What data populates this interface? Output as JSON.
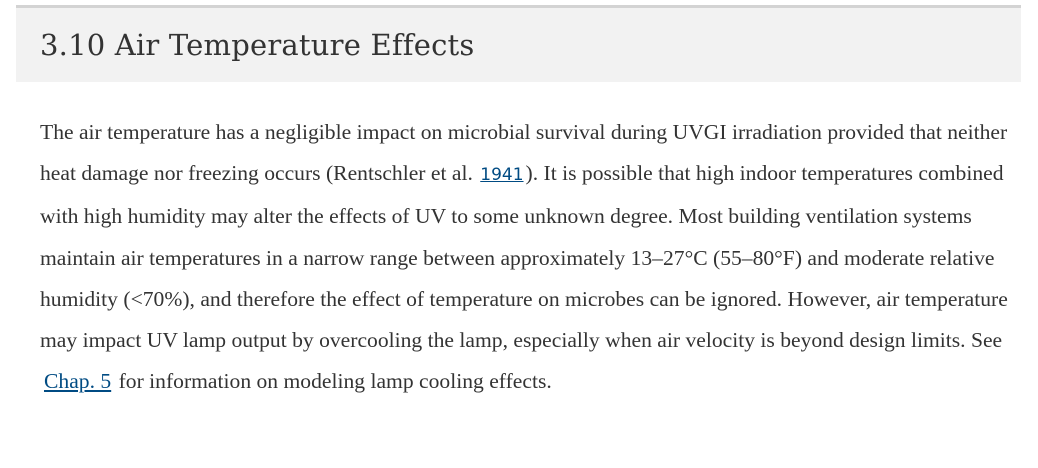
{
  "section": {
    "title": "3.10 Air Temperature Effects",
    "paragraph": {
      "t1": "The air temperature has a negligible impact on microbial survival during UVGI irradiation provided that neither heat damage nor freezing occurs (Rentschler et al. ",
      "citation": "1941",
      "t2": "). It is possible that high indoor temperatures combined with high humidity may alter the effects of UV to some unknown degree. Most building ventilation systems maintain air temperatures in a narrow range between approximately 13–27°C (55–80°F) and moderate relative humidity (<70%), and therefore the effect of temperature on microbes can be ignored. However, air temperature may impact UV lamp output by overcooling the lamp, especially when air velocity is beyond design limits. See ",
      "chapter_link": "Chap. 5",
      "t3": " for information on modeling lamp cooling effects."
    }
  }
}
